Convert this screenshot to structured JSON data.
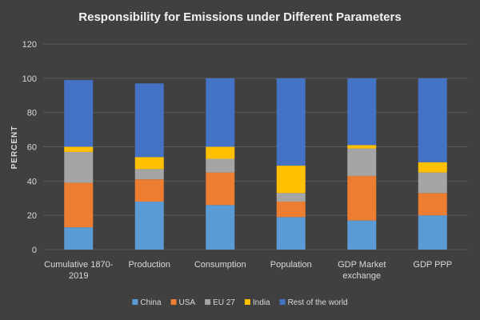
{
  "chart_data": {
    "type": "bar",
    "stacked": true,
    "title": "Responsibility for Emissions under Different Parameters",
    "ylabel": "PERCENT",
    "xlabel": "",
    "ylim": [
      0,
      120
    ],
    "yticks": [
      0,
      20,
      40,
      60,
      80,
      100,
      120
    ],
    "grid": true,
    "legend_position": "bottom",
    "categories": [
      [
        "Cumulative 1870-",
        "2019"
      ],
      [
        "Production"
      ],
      [
        "Consumption"
      ],
      [
        "Population"
      ],
      [
        "GDP Market",
        "exchange"
      ],
      [
        "GDP PPP"
      ]
    ],
    "series": [
      {
        "name": "China",
        "color": "#5b9bd5",
        "values": [
          13,
          28,
          26,
          19,
          17,
          20
        ]
      },
      {
        "name": "USA",
        "color": "#ed7d31",
        "values": [
          26,
          13,
          19,
          9,
          26,
          13
        ]
      },
      {
        "name": "EU 27",
        "color": "#a5a5a5",
        "values": [
          18,
          6,
          8,
          5,
          16,
          12
        ]
      },
      {
        "name": "India",
        "color": "#ffc000",
        "values": [
          3,
          7,
          7,
          16,
          2,
          6
        ]
      },
      {
        "name": "Rest of the world",
        "color": "#4472c4",
        "values": [
          39,
          43,
          40,
          51,
          39,
          49
        ]
      }
    ]
  }
}
